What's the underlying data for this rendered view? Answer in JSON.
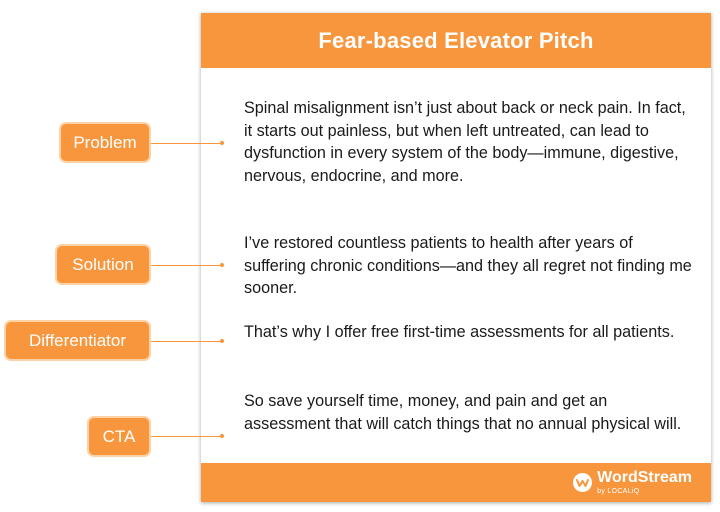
{
  "header": {
    "title": "Fear-based Elevator Pitch"
  },
  "sections": [
    {
      "label": "Problem",
      "text": "Spinal misalignment isn’t just about back or neck pain. In fact, it starts out painless, but when left untreated,  can lead to dysfunction in every system of the body—immune, digestive, nervous, endocrine, and more."
    },
    {
      "label": "Solution",
      "text": "I’ve restored countless patients to health after years of suffering chronic conditions—and they all regret not finding me sooner."
    },
    {
      "label": "Differentiator",
      "text": "That’s why I offer free first-time assessments for all patients."
    },
    {
      "label": "CTA",
      "text": "So save yourself time, money, and pain and get an assessment that will catch things that no annual physical will."
    }
  ],
  "footer": {
    "brand_name": "WordStream",
    "brand_sub": "by LOCALiQ",
    "logo_icon": "wordstream-logo-icon"
  },
  "colors": {
    "accent": "#f7963d",
    "label_glow": "#fbd3a6",
    "text": "#1a1a1a",
    "background": "#ffffff"
  }
}
